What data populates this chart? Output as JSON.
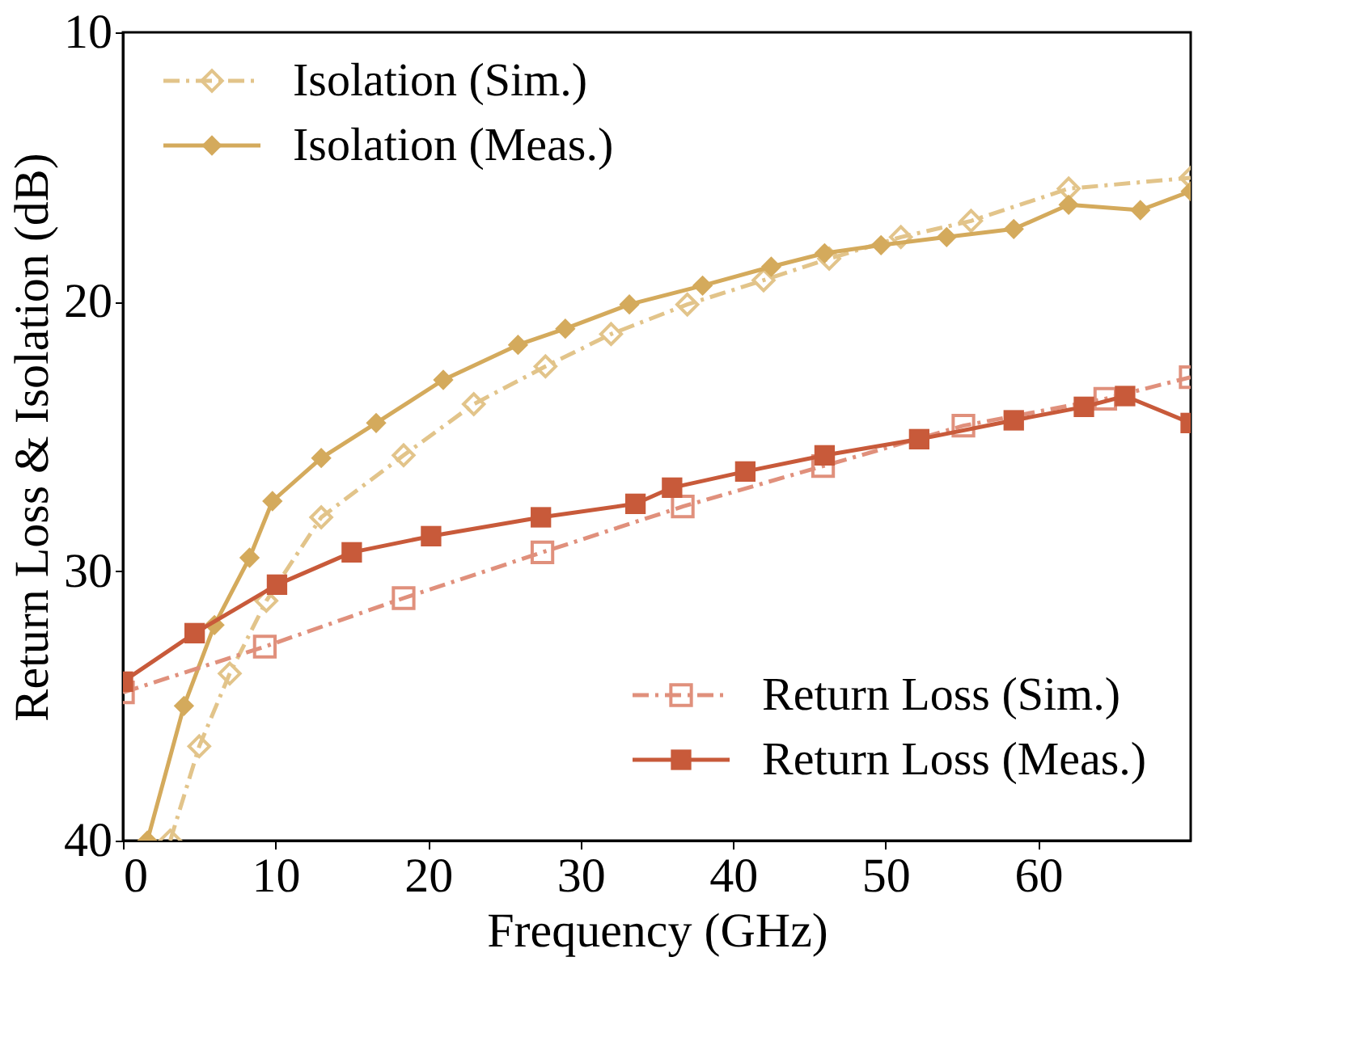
{
  "chart_data": {
    "type": "line",
    "xlabel": "Frequency (GHz)",
    "ylabel": "Return Loss & Isolation (dB)",
    "xlim": [
      0,
      70
    ],
    "ylim": [
      40,
      10
    ],
    "xticks": [
      0,
      10,
      20,
      30,
      40,
      50,
      60
    ],
    "yticks": [
      10,
      20,
      30,
      40
    ],
    "grid": false,
    "legend": [
      "top left",
      "bottom right"
    ],
    "series": [
      {
        "name": "Isolation (Sim.)",
        "color": "#e2c48a",
        "line_style": "dashed",
        "marker": "diamond",
        "x": [
          3.1,
          5,
          7,
          9.4,
          13,
          18.4,
          23,
          27.7,
          32,
          37,
          42,
          46.3,
          51,
          55.6,
          62,
          70
        ],
        "values": [
          40,
          36.5,
          33.8,
          31.1,
          28,
          25.7,
          23.8,
          22.4,
          21.2,
          20.1,
          19.2,
          18.4,
          17.6,
          17.0,
          15.8,
          15.4
        ]
      },
      {
        "name": "Isolation (Meas.)",
        "color": "#d4aa5c",
        "line_style": "solid",
        "marker": "diamond",
        "x": [
          1.6,
          4,
          6,
          8.3,
          9.8,
          13,
          16.6,
          21,
          25.9,
          29,
          33.2,
          38,
          42.5,
          46,
          49.7,
          54,
          58.4,
          62,
          66.7,
          70
        ],
        "values": [
          40,
          35,
          32,
          29.5,
          27.4,
          25.8,
          24.5,
          22.9,
          21.6,
          21.0,
          20.1,
          19.4,
          18.7,
          18.2,
          17.9,
          17.6,
          17.3,
          16.4,
          16.6,
          15.9
        ]
      },
      {
        "name": "Return Loss (Sim.)",
        "color": "#e0907c",
        "line_style": "dashed",
        "marker": "square",
        "x": [
          0,
          9.3,
          18.4,
          27.5,
          36.7,
          45.9,
          55.1,
          64.4,
          70
        ],
        "values": [
          34.5,
          32.8,
          31.0,
          29.3,
          27.6,
          26.1,
          24.6,
          23.6,
          22.8
        ]
      },
      {
        "name": "Return Loss (Meas.)",
        "color": "#c85a3a",
        "line_style": "solid",
        "marker": "square",
        "x": [
          0,
          4.7,
          10.1,
          15,
          20.2,
          27.4,
          33.6,
          36,
          40.8,
          46,
          52.2,
          58.4,
          63,
          65.7,
          70
        ],
        "values": [
          34.1,
          32.3,
          30.5,
          29.3,
          28.7,
          28.0,
          27.5,
          26.9,
          26.3,
          25.7,
          25.1,
          24.4,
          23.9,
          23.5,
          24.5
        ]
      }
    ]
  }
}
